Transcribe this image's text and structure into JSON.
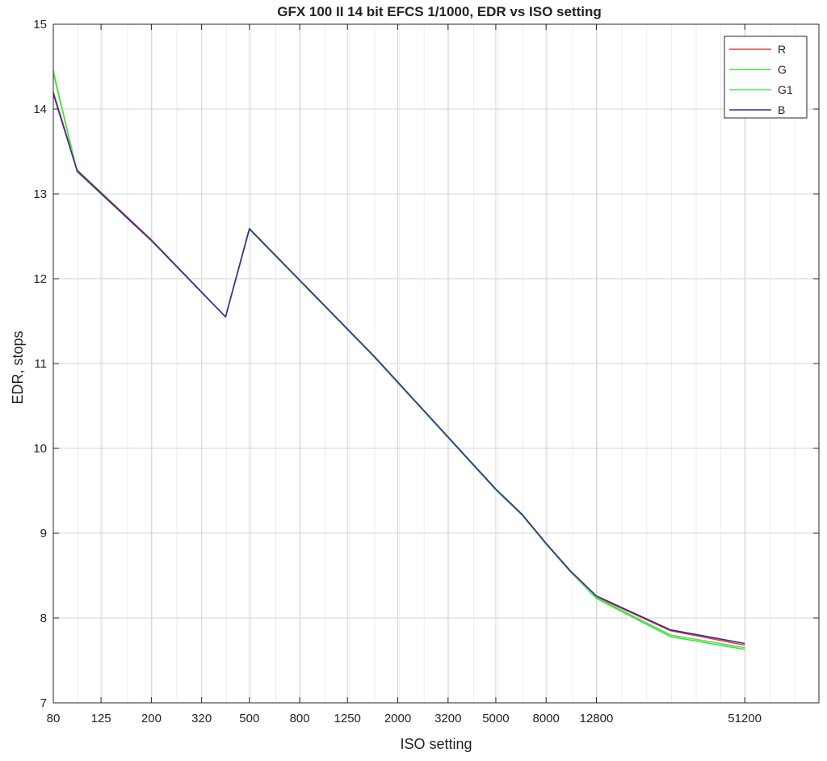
{
  "chart_data": {
    "type": "line",
    "title": "GFX 100 II 14 bit EFCS 1/1000, EDR vs ISO setting",
    "xlabel": "ISO setting",
    "ylabel": "EDR, stops",
    "x_scale": "log2",
    "xlim": [
      80,
      102400
    ],
    "ylim": [
      7,
      15
    ],
    "x_tick_labels": [
      "80",
      "125",
      "200",
      "320",
      "500",
      "800",
      "1250",
      "2000",
      "3200",
      "5000",
      "8000",
      "12800",
      "51200"
    ],
    "x_tick_values": [
      80,
      125,
      200,
      320,
      500,
      800,
      1250,
      2000,
      3200,
      5000,
      8000,
      12800,
      51200
    ],
    "y_ticks": [
      7,
      8,
      9,
      10,
      11,
      12,
      13,
      14,
      15
    ],
    "grid": true,
    "legend_position": "top-right",
    "series": [
      {
        "name": "R",
        "color": "#e04040",
        "x": [
          80,
          100,
          200,
          400,
          500,
          1600,
          5000,
          6400,
          8000,
          10000,
          12800,
          25600,
          51200
        ],
        "y": [
          14.2,
          13.28,
          12.46,
          11.55,
          12.59,
          11.08,
          9.52,
          9.22,
          8.88,
          8.56,
          8.25,
          7.85,
          7.68
        ]
      },
      {
        "name": "G",
        "color": "#44dd44",
        "x": [
          80,
          100,
          200,
          400,
          500,
          1600,
          5000,
          6400,
          8000,
          10000,
          12800,
          25600,
          51200
        ],
        "y": [
          14.45,
          13.26,
          12.45,
          11.55,
          12.58,
          11.08,
          9.51,
          9.21,
          8.87,
          8.55,
          8.23,
          7.78,
          7.63
        ]
      },
      {
        "name": "G1",
        "color": "#55e055",
        "x": [
          80,
          100,
          200,
          400,
          500,
          1600,
          5000,
          6400,
          8000,
          10000,
          12800,
          25600,
          51200
        ],
        "y": [
          14.42,
          13.26,
          12.45,
          11.55,
          12.58,
          11.08,
          9.51,
          9.21,
          8.87,
          8.55,
          8.24,
          7.8,
          7.65
        ]
      },
      {
        "name": "B",
        "color": "#3a2a9a",
        "x": [
          80,
          100,
          200,
          400,
          500,
          1600,
          5000,
          6400,
          8000,
          10000,
          12800,
          25600,
          51200
        ],
        "y": [
          14.18,
          13.27,
          12.45,
          11.55,
          12.59,
          11.09,
          9.52,
          9.22,
          8.88,
          8.56,
          8.26,
          7.86,
          7.7
        ]
      }
    ]
  }
}
